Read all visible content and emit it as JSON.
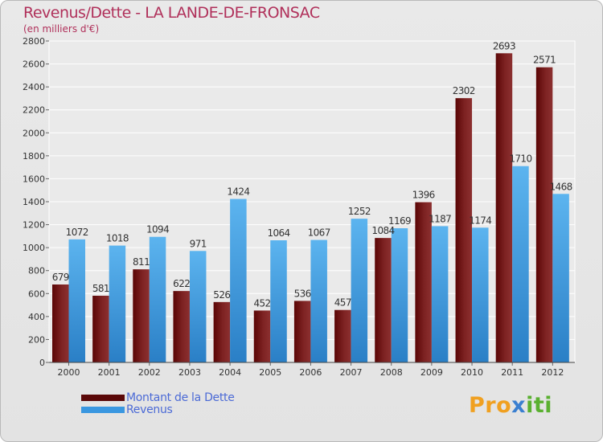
{
  "chart_data": {
    "type": "bar",
    "title": "Revenus/Dette - LA LANDE-DE-FRONSAC",
    "subtitle": "(en milliers d'€)",
    "categories": [
      "2000",
      "2001",
      "2002",
      "2003",
      "2004",
      "2005",
      "2006",
      "2007",
      "2008",
      "2009",
      "2010",
      "2011",
      "2012"
    ],
    "series": [
      {
        "name": "Montant de la Dette",
        "color": "#7a1a1a",
        "values": [
          679,
          581,
          811,
          622,
          526,
          452,
          536,
          457,
          1084,
          1396,
          2302,
          2693,
          2571
        ]
      },
      {
        "name": "Revenus",
        "color": "#3a97e0",
        "values": [
          1072,
          1018,
          1094,
          971,
          1424,
          1064,
          1067,
          1252,
          1169,
          1187,
          1174,
          1710,
          1468
        ]
      }
    ],
    "data_labels": [
      [
        "679",
        "581",
        "811",
        "622",
        "526",
        "452",
        "536",
        "457",
        "1084",
        "1396",
        "2302",
        "2693",
        "2571"
      ],
      [
        "1072",
        "1018",
        "1094",
        "971",
        "1424",
        "1064",
        "1067",
        "1252",
        "1169",
        "1187",
        "1174",
        "1710",
        "1468"
      ]
    ],
    "ylim": [
      0,
      2800
    ],
    "yticks": [
      0,
      200,
      400,
      600,
      800,
      1000,
      1200,
      1400,
      1600,
      1800,
      2000,
      2200,
      2400,
      2600,
      2800
    ],
    "grid": true,
    "legend_position": "bottom-left"
  },
  "logo": {
    "part1": "Pro",
    "part2": "x",
    "part3": "iti"
  }
}
